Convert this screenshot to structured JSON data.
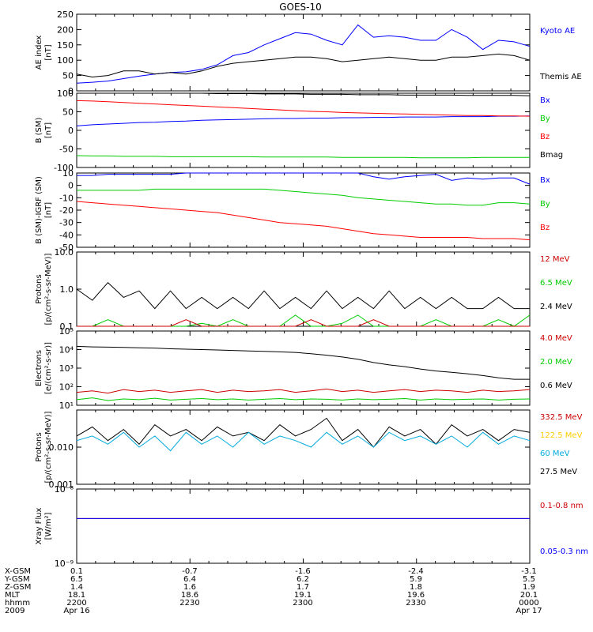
{
  "title": "GOES-10",
  "panels": [
    {
      "id": "ae",
      "ylabel": [
        "AE index",
        "[nT]"
      ],
      "scale": "linear",
      "ylim": [
        0,
        250
      ],
      "yticks": [
        "0",
        "50",
        "100",
        "150",
        "200",
        "250"
      ],
      "legend": [
        {
          "label": "Kyoto AE",
          "color": "#0000ff"
        },
        {
          "label": "Themis AE",
          "color": "#000000"
        }
      ]
    },
    {
      "id": "bsm",
      "ylabel": [
        "B (SM)",
        "[nT]"
      ],
      "scale": "linear",
      "ylim": [
        -100,
        100
      ],
      "yticks": [
        "-100",
        "-50",
        "0",
        "50",
        "100"
      ],
      "legend": [
        {
          "label": "Bx",
          "color": "#0000ff"
        },
        {
          "label": "By",
          "color": "#00cc00"
        },
        {
          "label": "Bz",
          "color": "#ff0000"
        },
        {
          "label": "Bmag",
          "color": "#000000"
        }
      ]
    },
    {
      "id": "bdiff",
      "ylabel": [
        "B (SM)-IGRF (SM)",
        "[nT]"
      ],
      "scale": "linear",
      "ylim": [
        -50,
        10
      ],
      "yticks": [
        "-50",
        "-40",
        "-30",
        "-20",
        "-10",
        "0",
        "10"
      ],
      "legend": [
        {
          "label": "Bx",
          "color": "#0000ff"
        },
        {
          "label": "By",
          "color": "#00cc00"
        },
        {
          "label": "Bz",
          "color": "#ff0000"
        }
      ]
    },
    {
      "id": "p_hi",
      "ylabel": [
        "Protons",
        "[p/(cm²-s-sr-MeV)]"
      ],
      "scale": "log",
      "ylim": [
        0.1,
        10
      ],
      "yticks": [
        "0.1",
        "1.0",
        "10.0"
      ],
      "legend": [
        {
          "label": "12 MeV",
          "color": "#cc0000"
        },
        {
          "label": "6.5 MeV",
          "color": "#00cc00"
        },
        {
          "label": "2.4 MeV",
          "color": "#000000"
        }
      ]
    },
    {
      "id": "electrons",
      "ylabel": [
        "Electrons",
        "[e/(cm²-s-sr)]"
      ],
      "scale": "log",
      "ylim": [
        10,
        100000
      ],
      "yticks": [
        "10¹",
        "10²",
        "10³",
        "10⁴",
        "10⁵"
      ],
      "legend": [
        {
          "label": "4.0 MeV",
          "color": "#cc0000"
        },
        {
          "label": "2.0 MeV",
          "color": "#00cc00"
        },
        {
          "label": "0.6 MeV",
          "color": "#000000"
        }
      ]
    },
    {
      "id": "p_lo",
      "ylabel": [
        "Protons",
        "[p/(cm²-s-sr-MeV)]"
      ],
      "scale": "log",
      "ylim": [
        0.001,
        0.1
      ],
      "yticks": [
        "0.001",
        "0.010",
        ""
      ],
      "legend": [
        {
          "label": "332.5 MeV",
          "color": "#cc0000"
        },
        {
          "label": "122.5 MeV",
          "color": "#ffcc00"
        },
        {
          "label": "60 MeV",
          "color": "#00aadd"
        },
        {
          "label": "27.5 MeV",
          "color": "#000000"
        }
      ]
    },
    {
      "id": "xray",
      "ylabel": [
        "Xray Flux",
        "[W/m²]"
      ],
      "scale": "log",
      "ylim": [
        1e-09,
        1e-08
      ],
      "yticks": [
        "10⁻⁹",
        "10⁻⁸"
      ],
      "legend": [
        {
          "label": "0.1-0.8 nm",
          "color": "#cc0000"
        },
        {
          "label": "0.05-0.3 nm",
          "color": "#0000ff"
        }
      ]
    }
  ],
  "ephemeris": {
    "labels": [
      "X-GSM",
      "Y-GSM",
      "Z-GSM",
      "MLT",
      "hhmm",
      "2009"
    ],
    "columns": [
      [
        "0.1",
        "6.5",
        "1.4",
        "18.1",
        "2200",
        "Apr 16"
      ],
      [
        "-0.7",
        "6.4",
        "1.6",
        "18.6",
        "2230",
        ""
      ],
      [
        "-1.6",
        "6.2",
        "1.7",
        "19.1",
        "2300",
        ""
      ],
      [
        "-2.4",
        "5.9",
        "1.8",
        "19.6",
        "2330",
        ""
      ],
      [
        "-3.1",
        "5.5",
        "1.9",
        "20.1",
        "0000",
        "Apr 17"
      ]
    ]
  },
  "chart_data": [
    {
      "type": "line",
      "title": "GOES-10",
      "ylabel": "AE index [nT]",
      "ylim": [
        0,
        250
      ],
      "x": "2009-04-16 22:00 to 2009-04-17 00:00",
      "series": [
        {
          "name": "Kyoto AE",
          "color": "#0000ff",
          "values": [
            25,
            28,
            32,
            40,
            48,
            55,
            60,
            62,
            70,
            85,
            115,
            125,
            150,
            170,
            190,
            185,
            165,
            150,
            215,
            175,
            180,
            175,
            165,
            165,
            200,
            175,
            135,
            165,
            160,
            145
          ]
        },
        {
          "name": "Themis AE",
          "color": "#000000",
          "values": [
            55,
            45,
            50,
            65,
            65,
            55,
            60,
            55,
            65,
            80,
            90,
            95,
            100,
            105,
            110,
            110,
            105,
            95,
            100,
            105,
            110,
            105,
            100,
            100,
            110,
            110,
            115,
            120,
            115,
            100
          ]
        }
      ]
    },
    {
      "type": "line",
      "ylabel": "B (SM) [nT]",
      "ylim": [
        -100,
        100
      ],
      "series": [
        {
          "name": "Bx",
          "color": "#0000ff",
          "values": [
            12,
            15,
            17,
            19,
            21,
            22,
            24,
            25,
            27,
            28,
            29,
            30,
            31,
            32,
            32,
            33,
            33,
            34,
            34,
            35,
            35,
            36,
            36,
            36,
            37,
            37,
            37,
            38,
            38,
            39
          ]
        },
        {
          "name": "By",
          "color": "#00cc00",
          "values": [
            -68,
            -69,
            -69,
            -70,
            -70,
            -70,
            -71,
            -71,
            -71,
            -71,
            -71,
            -71,
            -72,
            -72,
            -72,
            -72,
            -72,
            -73,
            -73,
            -73,
            -73,
            -73,
            -74,
            -74,
            -74,
            -74,
            -73,
            -73,
            -73,
            -73
          ]
        },
        {
          "name": "Bz",
          "color": "#ff0000",
          "values": [
            80,
            79,
            77,
            75,
            73,
            71,
            69,
            67,
            65,
            63,
            61,
            59,
            57,
            55,
            53,
            51,
            50,
            48,
            47,
            46,
            45,
            44,
            43,
            42,
            41,
            40,
            40,
            39,
            39,
            38
          ]
        },
        {
          "name": "Bmag",
          "color": "#000000",
          "values": [
            103,
            103,
            102,
            102,
            101,
            101,
            100,
            100,
            100,
            99,
            99,
            99,
            98,
            98,
            98,
            97,
            97,
            97,
            96,
            96,
            96,
            95,
            95,
            95,
            95,
            94,
            94,
            94,
            94,
            93
          ]
        }
      ]
    },
    {
      "type": "line",
      "ylabel": "B (SM)-IGRF (SM) [nT]",
      "ylim": [
        -50,
        10
      ],
      "series": [
        {
          "name": "Bx",
          "color": "#0000ff",
          "values": [
            8,
            8,
            9,
            9,
            9,
            9,
            9,
            10,
            10,
            10,
            10,
            10,
            11,
            11,
            11,
            12,
            12,
            11,
            10,
            7,
            5,
            7,
            8,
            9,
            4,
            6,
            5,
            6,
            6,
            1
          ]
        },
        {
          "name": "By",
          "color": "#00cc00",
          "values": [
            -4,
            -4,
            -4,
            -4,
            -4,
            -3,
            -3,
            -3,
            -3,
            -3,
            -3,
            -3,
            -3,
            -4,
            -5,
            -6,
            -7,
            -8,
            -10,
            -11,
            -12,
            -13,
            -14,
            -15,
            -15,
            -16,
            -16,
            -14,
            -14,
            -15
          ]
        },
        {
          "name": "Bz",
          "color": "#ff0000",
          "values": [
            -13,
            -14,
            -15,
            -16,
            -17,
            -18,
            -19,
            -20,
            -21,
            -22,
            -24,
            -26,
            -28,
            -30,
            -31,
            -32,
            -33,
            -35,
            -37,
            -39,
            -40,
            -41,
            -42,
            -42,
            -42,
            -42,
            -43,
            -43,
            -43,
            -44
          ]
        }
      ]
    },
    {
      "type": "line",
      "ylabel": "Protons [p/(cm2-s-sr-MeV)]",
      "ylim": [
        0.1,
        10
      ],
      "yscale": "log",
      "series": [
        {
          "name": "2.4 MeV",
          "color": "#000000",
          "values": [
            1.0,
            0.5,
            1.5,
            0.6,
            0.9,
            0.3,
            0.9,
            0.3,
            0.6,
            0.3,
            0.6,
            0.3,
            0.9,
            0.3,
            0.6,
            0.3,
            0.9,
            0.3,
            0.6,
            0.3,
            0.9,
            0.3,
            0.6,
            0.3,
            0.6,
            0.3,
            0.3,
            0.6,
            0.3,
            0.3
          ]
        },
        {
          "name": "6.5 MeV",
          "color": "#00cc00",
          "values": [
            0.1,
            0.1,
            0.15,
            0.1,
            0.1,
            0.1,
            0.1,
            0.1,
            0.12,
            0.1,
            0.15,
            0.1,
            0.1,
            0.1,
            0.2,
            0.1,
            0.1,
            0.12,
            0.2,
            0.1,
            0.1,
            0.1,
            0.1,
            0.15,
            0.1,
            0.1,
            0.1,
            0.15,
            0.1,
            0.2
          ]
        },
        {
          "name": "12 MeV",
          "color": "#cc0000",
          "values": [
            0.1,
            0.1,
            0.1,
            0.1,
            0.1,
            0.1,
            0.1,
            0.15,
            0.1,
            0.1,
            0.1,
            0.1,
            0.1,
            0.1,
            0.1,
            0.15,
            0.1,
            0.1,
            0.1,
            0.15,
            0.1,
            0.1,
            0.1,
            0.1,
            0.1,
            0.1,
            0.1,
            0.1,
            0.1,
            0.1
          ]
        }
      ]
    },
    {
      "type": "line",
      "ylabel": "Electrons [e/(cm2-s-sr)]",
      "ylim": [
        10,
        100000
      ],
      "yscale": "log",
      "series": [
        {
          "name": "0.6 MeV",
          "color": "#000000",
          "values": [
            15000,
            14000,
            13500,
            13000,
            12500,
            12000,
            11000,
            10500,
            10000,
            9500,
            9000,
            8500,
            8000,
            7500,
            7000,
            6000,
            5000,
            4000,
            3000,
            2000,
            1500,
            1200,
            900,
            700,
            600,
            500,
            400,
            300,
            250,
            250
          ]
        },
        {
          "name": "4.0 MeV",
          "color": "#cc0000",
          "values": [
            50,
            60,
            45,
            70,
            55,
            65,
            50,
            60,
            70,
            50,
            65,
            55,
            60,
            70,
            50,
            60,
            75,
            55,
            65,
            50,
            60,
            70,
            55,
            65,
            60,
            50,
            65,
            55,
            60,
            70
          ]
        },
        {
          "name": "2.0 MeV",
          "color": "#00cc00",
          "values": [
            20,
            25,
            18,
            22,
            20,
            24,
            19,
            21,
            23,
            20,
            22,
            19,
            21,
            23,
            20,
            22,
            21,
            19,
            22,
            20,
            21,
            23,
            19,
            22,
            20,
            21,
            22,
            19,
            21,
            22
          ]
        }
      ]
    },
    {
      "type": "line",
      "ylabel": "Protons [p/(cm2-s-sr-MeV)]",
      "ylim": [
        0.001,
        0.1
      ],
      "yscale": "log",
      "series": [
        {
          "name": "27.5 MeV",
          "color": "#000000",
          "values": [
            0.02,
            0.035,
            0.015,
            0.03,
            0.012,
            0.04,
            0.02,
            0.03,
            0.015,
            0.035,
            0.02,
            0.025,
            0.015,
            0.04,
            0.02,
            0.03,
            0.06,
            0.015,
            0.03,
            0.01,
            0.035,
            0.02,
            0.03,
            0.012,
            0.04,
            0.02,
            0.03,
            0.015,
            0.03,
            0.025
          ]
        },
        {
          "name": "60 MeV",
          "color": "#00aadd",
          "values": [
            0.015,
            0.02,
            0.012,
            0.025,
            0.01,
            0.02,
            0.008,
            0.025,
            0.012,
            0.02,
            0.01,
            0.025,
            0.012,
            0.02,
            0.015,
            0.01,
            0.025,
            0.012,
            0.02,
            0.01,
            0.025,
            0.015,
            0.02,
            0.012,
            0.02,
            0.01,
            0.025,
            0.012,
            0.02,
            0.015
          ]
        }
      ]
    },
    {
      "type": "line",
      "ylabel": "Xray Flux [W/m2]",
      "ylim": [
        1e-09,
        1e-08
      ],
      "yscale": "log",
      "series": [
        {
          "name": "0.1-0.8 nm",
          "color": "#cc0000",
          "values": [
            4e-09,
            4e-09
          ]
        },
        {
          "name": "0.05-0.3 nm",
          "color": "#0000ff",
          "values": [
            4e-09,
            4e-09
          ]
        }
      ]
    }
  ]
}
